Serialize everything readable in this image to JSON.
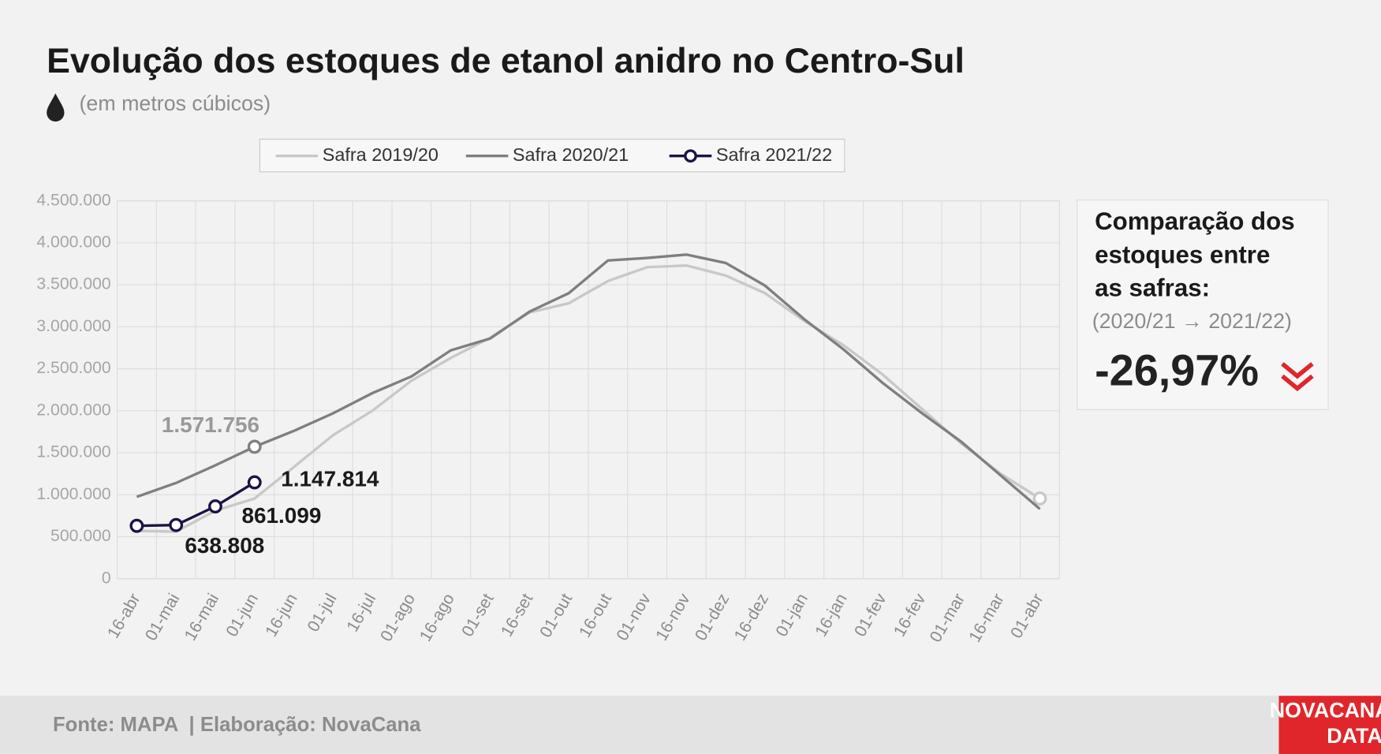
{
  "chart_data": {
    "type": "line",
    "title": "Evolução dos estoques de etanol anidro no Centro-Sul",
    "subtitle": "(em metros cúbicos)",
    "categories": [
      "16-abr",
      "01-mai",
      "16-mai",
      "01-jun",
      "16-jun",
      "01-jul",
      "16-jul",
      "01-ago",
      "16-ago",
      "01-set",
      "16-set",
      "01-out",
      "16-out",
      "01-nov",
      "16-nov",
      "01-dez",
      "16-dez",
      "01-jan",
      "16-jan",
      "01-fev",
      "16-fev",
      "01-mar",
      "16-mar",
      "01-abr"
    ],
    "series": [
      {
        "name": "Safra 2019/20",
        "color": "#c8c8c8",
        "markers": "last",
        "values": [
          570000,
          560000,
          810000,
          955000,
          1330000,
          1710000,
          2000000,
          2360000,
          2630000,
          2870000,
          3170000,
          3280000,
          3545000,
          3710000,
          3730000,
          3610000,
          3400000,
          3070000,
          2780000,
          2430000,
          2020000,
          1610000,
          1250000,
          955000
        ]
      },
      {
        "name": "Safra 2020/21",
        "color": "#7f7f7f",
        "markers": "labeled",
        "values": [
          975000,
          1140000,
          1350000,
          1571756,
          1760000,
          1970000,
          2210000,
          2410000,
          2720000,
          2860000,
          3180000,
          3400000,
          3790000,
          3820000,
          3860000,
          3760000,
          3490000,
          3090000,
          2730000,
          2330000,
          1970000,
          1630000,
          1230000,
          830000
        ],
        "value_labels": [
          null,
          null,
          null,
          "1.571.756",
          null,
          null,
          null,
          null,
          null,
          null,
          null,
          null,
          null,
          null,
          null,
          null,
          null,
          null,
          null,
          null,
          null,
          null,
          null,
          null
        ]
      },
      {
        "name": "Safra 2021/22",
        "color": "#1a1446",
        "markers": "all",
        "values": [
          630000,
          638808,
          861099,
          1147814,
          null,
          null,
          null,
          null,
          null,
          null,
          null,
          null,
          null,
          null,
          null,
          null,
          null,
          null,
          null,
          null,
          null,
          null,
          null,
          null
        ],
        "value_labels": [
          null,
          "638.808",
          "861.099",
          "1.147.814",
          null,
          null,
          null,
          null,
          null,
          null,
          null,
          null,
          null,
          null,
          null,
          null,
          null,
          null,
          null,
          null,
          null,
          null,
          null,
          null
        ]
      }
    ],
    "ylim": [
      0,
      4500000
    ],
    "yticks": [
      0,
      {
        "value": 500000,
        "label": "500.000"
      },
      {
        "value": 1000000,
        "label": "1.000.000"
      },
      {
        "value": 1500000,
        "label": "1.500.000"
      },
      {
        "value": 2000000,
        "label": "2.000.000"
      },
      {
        "value": 2500000,
        "label": "2.500.000"
      },
      {
        "value": 3000000,
        "label": "3.000.000"
      },
      {
        "value": 3500000,
        "label": "3.500.000"
      },
      {
        "value": 4000000,
        "label": "4.000.000"
      },
      {
        "value": 4500000,
        "label": "4.500.000"
      }
    ],
    "grid": true,
    "legend": "top"
  },
  "comparison": {
    "title_lines": [
      "Comparação dos",
      "estoques entre",
      "as safras:"
    ],
    "period": "(2020/21 → 2021/22)",
    "change": "-26,97%"
  },
  "footer": {
    "source": "Fonte: MAPA  | Elaboração: NovaCana",
    "logo_lines": [
      "NOVACANA",
      "DATA"
    ]
  }
}
